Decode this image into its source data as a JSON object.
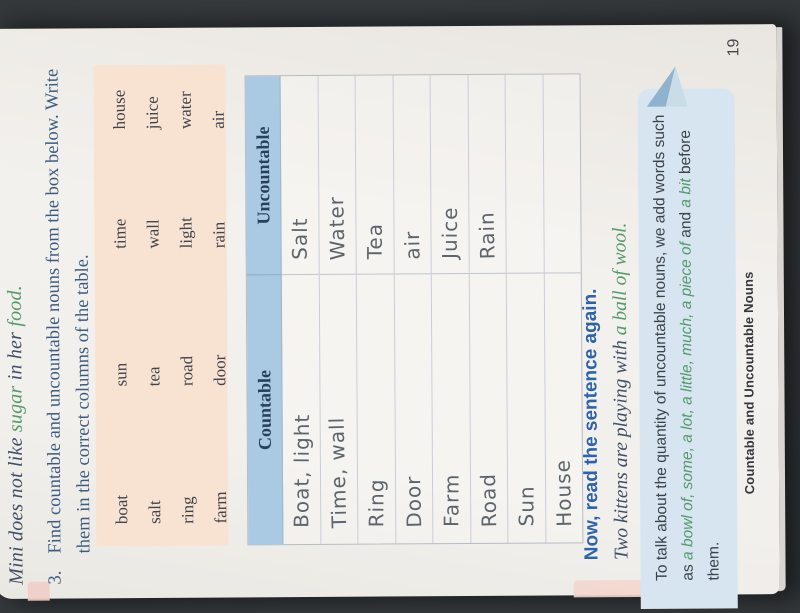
{
  "page": {
    "sentence_top": {
      "pre": "Mini does not like ",
      "highlight1": "sugar",
      "mid": " in her ",
      "highlight2": "food."
    },
    "exercise": {
      "number": "3.",
      "line1": "Find countable and uncountable nouns from the box below. Write",
      "line2": "them in the correct columns of the table."
    },
    "word_box": {
      "rows": [
        [
          "boat",
          "sun",
          "time",
          "house"
        ],
        [
          "salt",
          "tea",
          "wall",
          "juice"
        ],
        [
          "ring",
          "road",
          "light",
          "water"
        ],
        [
          "farm",
          "door",
          "rain",
          "air"
        ]
      ]
    },
    "table": {
      "headers": [
        "Countable",
        "Uncountable"
      ],
      "rows": [
        [
          "Boat, light",
          "Salt"
        ],
        [
          "Time, wall",
          "Water"
        ],
        [
          "Ring",
          "Tea"
        ],
        [
          "Door",
          "air"
        ],
        [
          "Farm",
          "Juice"
        ],
        [
          "Road",
          "Rain"
        ],
        [
          "Sun",
          ""
        ],
        [
          "House",
          ""
        ]
      ]
    },
    "heading": "Now, read the sentence again.",
    "sentence_bottom": {
      "pre": "Two kittens are playing with ",
      "highlight": "a ball of wool."
    },
    "note_box": {
      "line_pre": "To talk about the quantity of uncountable nouns, we add words such as ",
      "highlight1": "a bowl of, some, a lot, a little, much, a piece of",
      "mid": " and ",
      "highlight2": "a bit",
      "post": " before them."
    },
    "footer": "Countable and Uncountable Nouns",
    "page_number": "19"
  },
  "colors": {
    "background": "#33373a",
    "page": "#f2f0ec",
    "word_box_bg": "#f8e2d1",
    "table_header_bg": "#a9cae2",
    "note_box_bg": "#d6e5ef",
    "note_fold": "#8fb2cf",
    "heading_blue": "#2e62ab",
    "body_slate": "#414f66",
    "instruction_blue": "#3b5c80",
    "highlight_green": "#549a6b",
    "handwriting_gray": "#5e646c",
    "edge_tab_pink": "#f0cdc6"
  }
}
